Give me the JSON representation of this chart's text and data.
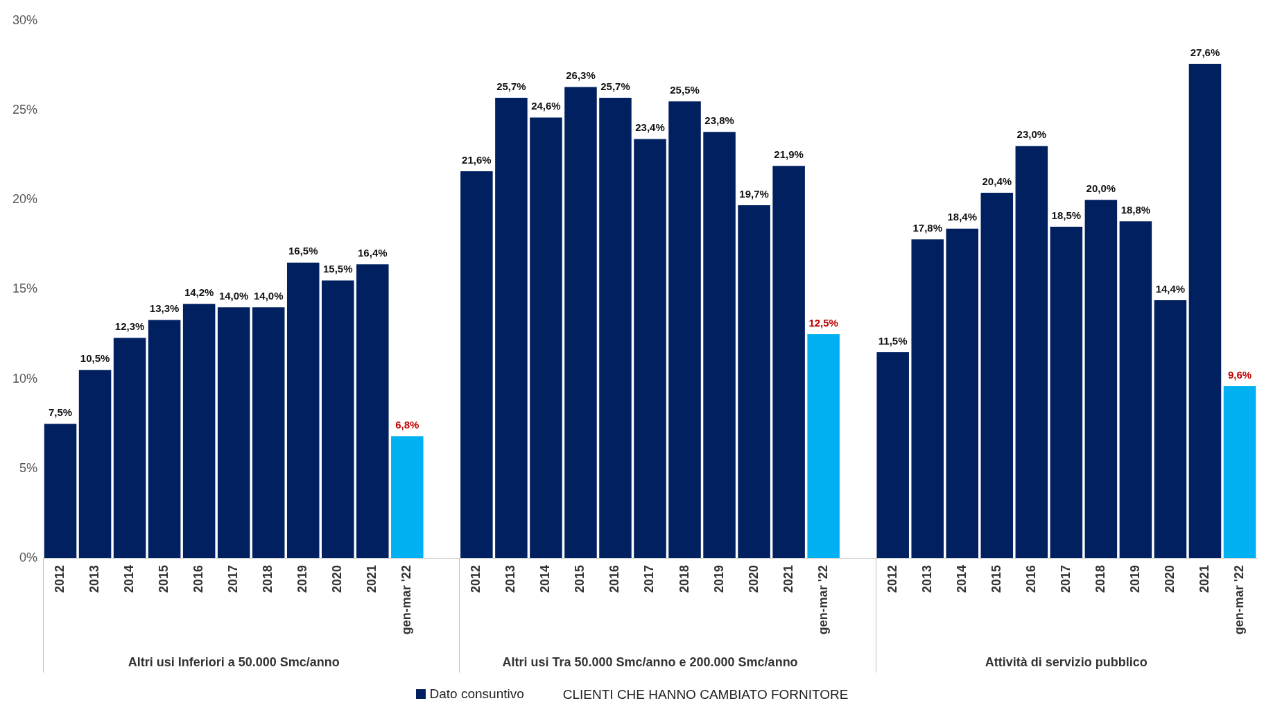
{
  "chart_data": {
    "type": "bar",
    "categories": [
      "2012",
      "2013",
      "2014",
      "2015",
      "2016",
      "2017",
      "2018",
      "2019",
      "2020",
      "2021",
      "gen-mar '22",
      null,
      "2012",
      "2013",
      "2014",
      "2015",
      "2016",
      "2017",
      "2018",
      "2019",
      "2020",
      "2021",
      "gen-mar '22",
      null,
      "2012",
      "2013",
      "2014",
      "2015",
      "2016",
      "2017",
      "2018",
      "2019",
      "2020",
      "2021",
      "gen-mar '22"
    ],
    "series": [
      {
        "name": "Dato consuntivo",
        "color": "#002060",
        "colors": [
          "#002060",
          "#002060",
          "#002060",
          "#002060",
          "#002060",
          "#002060",
          "#002060",
          "#002060",
          "#002060",
          "#002060",
          "#00b0f0",
          null,
          "#002060",
          "#002060",
          "#002060",
          "#002060",
          "#002060",
          "#002060",
          "#002060",
          "#002060",
          "#002060",
          "#002060",
          "#00b0f0",
          null,
          "#002060",
          "#002060",
          "#002060",
          "#002060",
          "#002060",
          "#002060",
          "#002060",
          "#002060",
          "#002060",
          "#002060",
          "#00b0f0"
        ],
        "values": [
          7.5,
          10.5,
          12.3,
          13.3,
          14.2,
          14.0,
          14.0,
          16.5,
          15.5,
          16.4,
          6.8,
          null,
          21.6,
          25.7,
          24.6,
          26.3,
          25.7,
          23.4,
          25.5,
          23.8,
          19.7,
          21.9,
          12.5,
          null,
          11.5,
          17.8,
          18.4,
          20.4,
          23.0,
          18.5,
          20.0,
          18.8,
          14.4,
          27.6,
          9.6
        ],
        "value_labels": [
          "7,5%",
          "10,5%",
          "12,3%",
          "13,3%",
          "14,2%",
          "14,0%",
          "14,0%",
          "16,5%",
          "15,5%",
          "16,4%",
          "6,8%",
          null,
          "21,6%",
          "25,7%",
          "24,6%",
          "26,3%",
          "25,7%",
          "23,4%",
          "25,5%",
          "23,8%",
          "19,7%",
          "21,9%",
          "12,5%",
          null,
          "11,5%",
          "17,8%",
          "18,4%",
          "20,4%",
          "23,0%",
          "18,5%",
          "20,0%",
          "18,8%",
          "14,4%",
          "27,6%",
          "9,6%"
        ]
      }
    ],
    "ylim": [
      0,
      30
    ],
    "yticks": [
      {
        "value": 0,
        "label": "0%"
      },
      {
        "value": 5,
        "label": "5%"
      },
      {
        "value": 10,
        "label": "10%"
      },
      {
        "value": 15,
        "label": "15%"
      },
      {
        "value": 20,
        "label": "20%"
      },
      {
        "value": 25,
        "label": "25%"
      },
      {
        "value": 30,
        "label": "30%"
      }
    ],
    "grid": false,
    "legend": "bottom",
    "annotations": [
      "Altri usi Inferiori a 50.000 Smc/anno",
      "Altri usi Tra 50.000 Smc/anno e 200.000 Smc/anno",
      "Attività di servizio pubblico",
      "CLIENTI CHE HANNO CAMBIATO FORNITORE"
    ]
  }
}
